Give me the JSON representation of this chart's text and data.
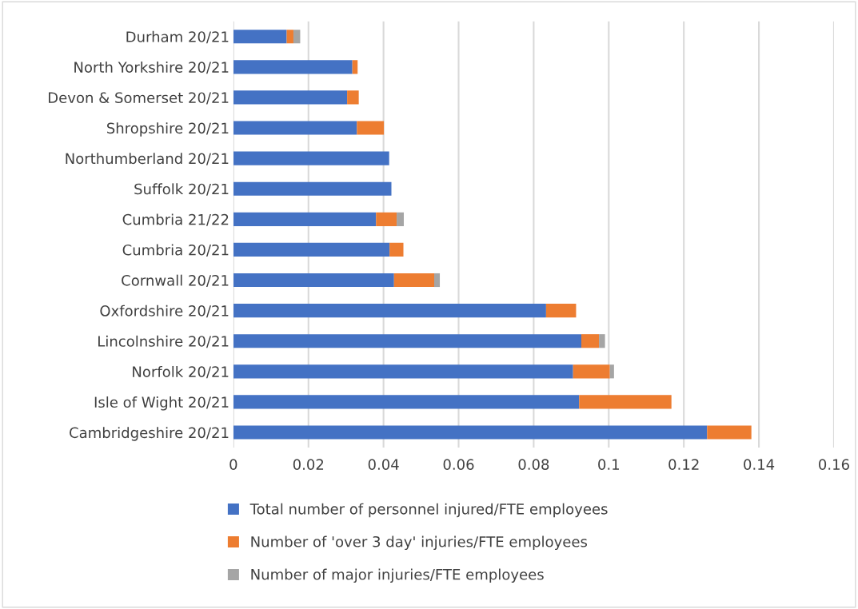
{
  "chart_data": {
    "type": "bar",
    "orientation": "horizontal",
    "stacked": true,
    "categories": [
      "Durham 20/21",
      "North Yorkshire 20/21",
      "Devon & Somerset 20/21",
      "Shropshire 20/21",
      "Northumberland 20/21",
      "Suffolk 20/21",
      "Cumbria 21/22",
      "Cumbria 20/21",
      "Cornwall 20/21",
      "Oxfordshire 20/21",
      "Lincolnshire 20/21",
      "Norfolk 20/21",
      "Isle of Wight 20/21",
      "Cambridgeshire 20/21"
    ],
    "series": [
      {
        "name": "Total number of personnel injured/FTE employees",
        "color": "#4472c4",
        "values": [
          0.0142,
          0.0317,
          0.0303,
          0.0329,
          0.0415,
          0.0421,
          0.038,
          0.0416,
          0.0428,
          0.0833,
          0.0927,
          0.0905,
          0.0921,
          0.1262
        ]
      },
      {
        "name": "Number of 'over 3 day' injuries/FTE employees",
        "color": "#ed7d31",
        "values": [
          0.0018,
          0.0014,
          0.0031,
          0.0072,
          null,
          null,
          0.0055,
          0.0037,
          0.0107,
          0.008,
          0.0047,
          0.0098,
          0.0246,
          0.0118
        ]
      },
      {
        "name": "Number of major injuries/FTE employees",
        "color": "#a5a5a5",
        "values": [
          0.0018,
          null,
          null,
          null,
          null,
          null,
          0.0019,
          null,
          0.0015,
          null,
          0.0016,
          0.0011,
          null,
          null
        ]
      }
    ],
    "xlim": [
      0,
      0.16
    ],
    "xticks": [
      0,
      0.02,
      0.04,
      0.06,
      0.08,
      0.1,
      0.12,
      0.14,
      0.16
    ],
    "grid": "x",
    "legend": "bottom"
  }
}
